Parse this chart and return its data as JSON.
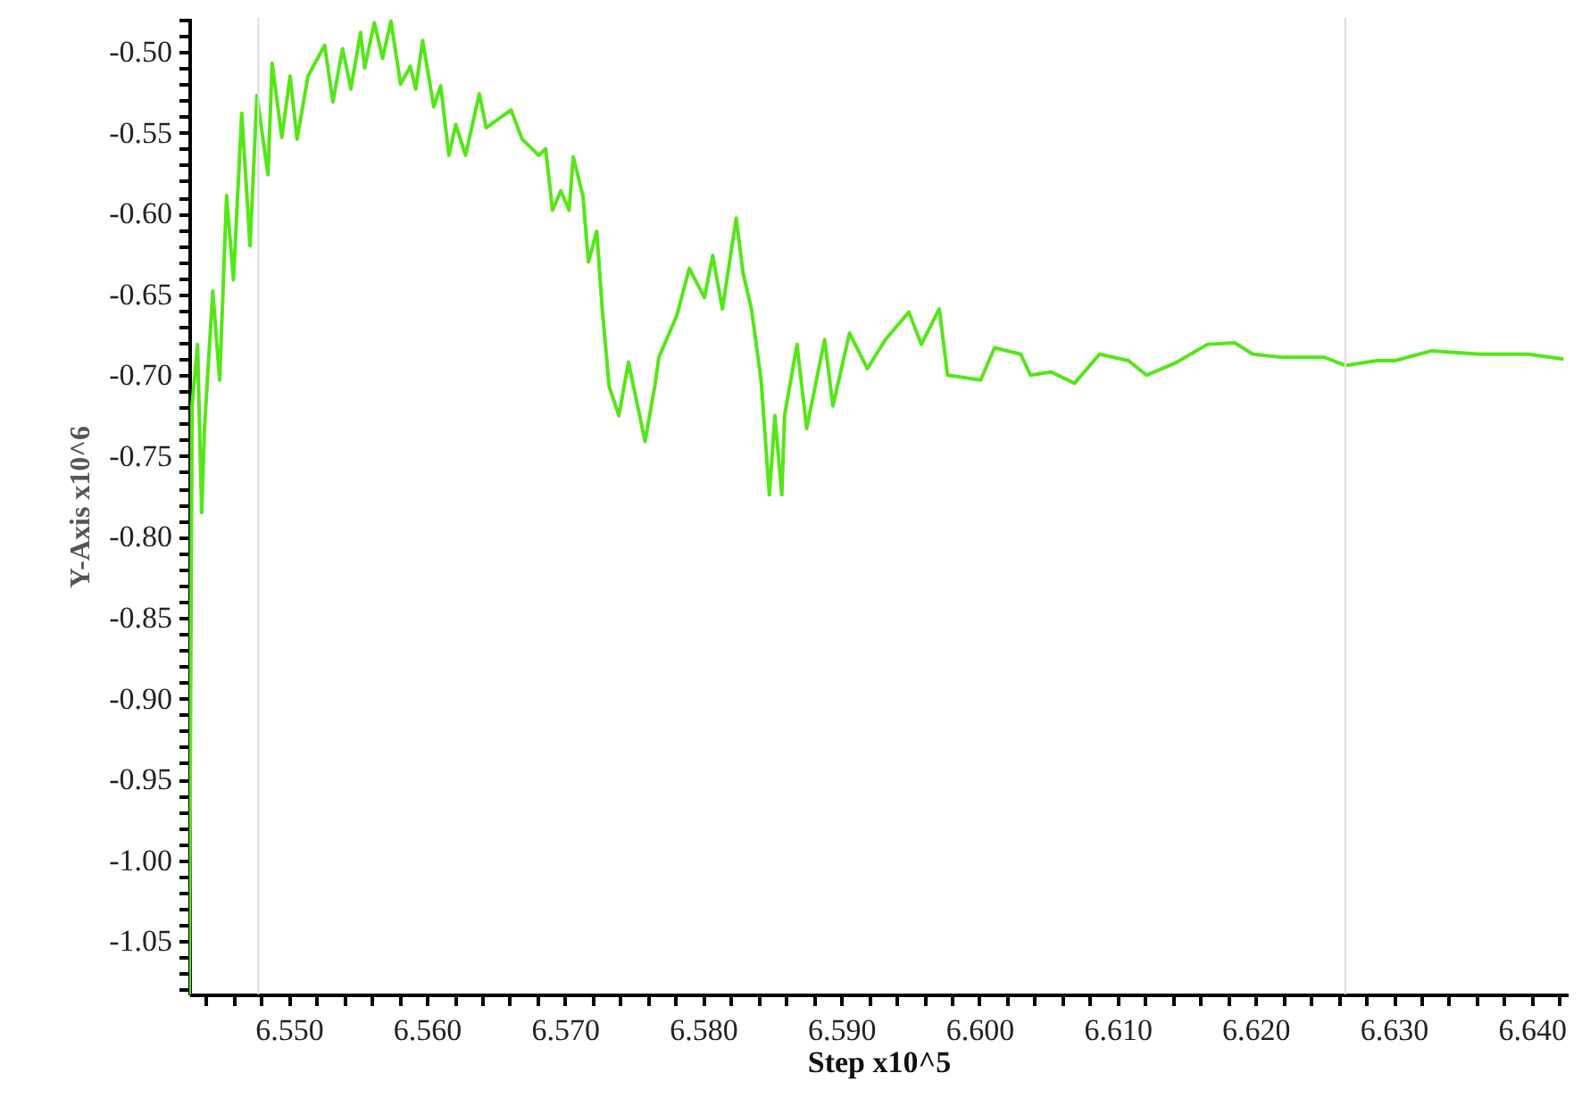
{
  "chart_data": {
    "type": "line",
    "xlabel": "Step x10^5",
    "ylabel": "Y-Axis x10^6",
    "x": [
      6.5428,
      6.543,
      6.5434,
      6.5437,
      6.5439,
      6.5445,
      6.545,
      6.5455,
      6.546,
      6.5466,
      6.5472,
      6.5477,
      6.5485,
      6.5488,
      6.5495,
      6.5501,
      6.5506,
      6.5514,
      6.5526,
      6.5532,
      6.5539,
      6.5545,
      6.5552,
      6.5555,
      6.5562,
      6.5568,
      6.5574,
      6.5581,
      6.5588,
      6.5592,
      6.5597,
      6.5605,
      6.561,
      6.5616,
      6.5621,
      6.5628,
      6.5638,
      6.5643,
      6.5661,
      6.5669,
      6.5681,
      6.5686,
      6.5691,
      6.5697,
      6.5703,
      6.5706,
      6.5713,
      6.5717,
      6.5723,
      6.5727,
      6.5732,
      6.5739,
      6.5746,
      6.5758,
      6.5765,
      6.5768,
      6.5781,
      6.579,
      6.5801,
      6.5807,
      6.5814,
      6.5824,
      6.5829,
      6.5835,
      6.5842,
      6.5848,
      6.5852,
      6.5857,
      6.5859,
      6.5868,
      6.5875,
      6.5888,
      6.5894,
      6.5906,
      6.5919,
      6.5932,
      6.5949,
      6.5958,
      6.5971,
      6.5977,
      6.6001,
      6.6011,
      6.603,
      6.6037,
      6.6052,
      6.6069,
      6.6087,
      6.6108,
      6.6121,
      6.6143,
      6.6165,
      6.6185,
      6.6198,
      6.622,
      6.625,
      6.6265,
      6.6288,
      6.6301,
      6.6327,
      6.6362,
      6.6397,
      6.6423
    ],
    "series": [
      {
        "color": "#55e619",
        "values": [
          -1.083,
          -0.719,
          -0.681,
          -0.785,
          -0.733,
          -0.648,
          -0.703,
          -0.589,
          -0.641,
          -0.538,
          -0.62,
          -0.527,
          -0.576,
          -0.507,
          -0.553,
          -0.515,
          -0.554,
          -0.515,
          -0.496,
          -0.531,
          -0.498,
          -0.523,
          -0.488,
          -0.51,
          -0.482,
          -0.504,
          -0.481,
          -0.52,
          -0.509,
          -0.523,
          -0.493,
          -0.534,
          -0.521,
          -0.564,
          -0.545,
          -0.564,
          -0.526,
          -0.547,
          -0.536,
          -0.554,
          -0.564,
          -0.56,
          -0.598,
          -0.586,
          -0.598,
          -0.565,
          -0.589,
          -0.63,
          -0.611,
          -0.659,
          -0.707,
          -0.725,
          -0.692,
          -0.741,
          -0.707,
          -0.689,
          -0.663,
          -0.634,
          -0.652,
          -0.626,
          -0.659,
          -0.603,
          -0.637,
          -0.659,
          -0.703,
          -0.774,
          -0.725,
          -0.774,
          -0.725,
          -0.681,
          -0.733,
          -0.678,
          -0.719,
          -0.674,
          -0.696,
          -0.678,
          -0.661,
          -0.681,
          -0.659,
          -0.7,
          -0.703,
          -0.683,
          -0.687,
          -0.7,
          -0.698,
          -0.705,
          -0.687,
          -0.691,
          -0.7,
          -0.692,
          -0.681,
          -0.68,
          -0.687,
          -0.689,
          -0.689,
          -0.694,
          -0.691,
          -0.691,
          -0.685,
          -0.687,
          -0.687,
          -0.69
        ]
      }
    ],
    "xlim": [
      6.5428,
      6.6426
    ],
    "ylim": [
      -1.083,
      -0.479
    ],
    "xticks": [
      {
        "value": 6.544,
        "label": null
      },
      {
        "value": 6.546,
        "label": null
      },
      {
        "value": 6.548,
        "label": null
      },
      {
        "value": 6.55,
        "label": "6.550"
      },
      {
        "value": 6.552,
        "label": null
      },
      {
        "value": 6.554,
        "label": null
      },
      {
        "value": 6.556,
        "label": null
      },
      {
        "value": 6.558,
        "label": null
      },
      {
        "value": 6.56,
        "label": "6.560"
      },
      {
        "value": 6.562,
        "label": null
      },
      {
        "value": 6.564,
        "label": null
      },
      {
        "value": 6.566,
        "label": null
      },
      {
        "value": 6.568,
        "label": null
      },
      {
        "value": 6.57,
        "label": "6.570"
      },
      {
        "value": 6.572,
        "label": null
      },
      {
        "value": 6.574,
        "label": null
      },
      {
        "value": 6.576,
        "label": null
      },
      {
        "value": 6.578,
        "label": null
      },
      {
        "value": 6.58,
        "label": "6.580"
      },
      {
        "value": 6.582,
        "label": null
      },
      {
        "value": 6.584,
        "label": null
      },
      {
        "value": 6.586,
        "label": null
      },
      {
        "value": 6.588,
        "label": null
      },
      {
        "value": 6.59,
        "label": "6.590"
      },
      {
        "value": 6.592,
        "label": null
      },
      {
        "value": 6.594,
        "label": null
      },
      {
        "value": 6.596,
        "label": null
      },
      {
        "value": 6.598,
        "label": null
      },
      {
        "value": 6.6,
        "label": "6.600"
      },
      {
        "value": 6.602,
        "label": null
      },
      {
        "value": 6.604,
        "label": null
      },
      {
        "value": 6.606,
        "label": null
      },
      {
        "value": 6.608,
        "label": null
      },
      {
        "value": 6.61,
        "label": "6.610"
      },
      {
        "value": 6.612,
        "label": null
      },
      {
        "value": 6.614,
        "label": null
      },
      {
        "value": 6.616,
        "label": null
      },
      {
        "value": 6.618,
        "label": null
      },
      {
        "value": 6.62,
        "label": "6.620"
      },
      {
        "value": 6.622,
        "label": null
      },
      {
        "value": 6.624,
        "label": null
      },
      {
        "value": 6.626,
        "label": null
      },
      {
        "value": 6.628,
        "label": null
      },
      {
        "value": 6.63,
        "label": "6.630"
      },
      {
        "value": 6.632,
        "label": null
      },
      {
        "value": 6.634,
        "label": null
      },
      {
        "value": 6.636,
        "label": null
      },
      {
        "value": 6.638,
        "label": null
      },
      {
        "value": 6.64,
        "label": "6.640"
      },
      {
        "value": 6.642,
        "label": null
      }
    ],
    "yticks": [
      {
        "value": -1.08,
        "label": null
      },
      {
        "value": -1.07,
        "label": null
      },
      {
        "value": -1.06,
        "label": null
      },
      {
        "value": -1.05,
        "label": "-1.05"
      },
      {
        "value": -1.04,
        "label": null
      },
      {
        "value": -1.03,
        "label": null
      },
      {
        "value": -1.02,
        "label": null
      },
      {
        "value": -1.01,
        "label": null
      },
      {
        "value": -1.0,
        "label": "-1.00"
      },
      {
        "value": -0.99,
        "label": null
      },
      {
        "value": -0.98,
        "label": null
      },
      {
        "value": -0.97,
        "label": null
      },
      {
        "value": -0.96,
        "label": null
      },
      {
        "value": -0.95,
        "label": "-0.95"
      },
      {
        "value": -0.94,
        "label": null
      },
      {
        "value": -0.93,
        "label": null
      },
      {
        "value": -0.92,
        "label": null
      },
      {
        "value": -0.91,
        "label": null
      },
      {
        "value": -0.9,
        "label": "-0.90"
      },
      {
        "value": -0.89,
        "label": null
      },
      {
        "value": -0.88,
        "label": null
      },
      {
        "value": -0.87,
        "label": null
      },
      {
        "value": -0.86,
        "label": null
      },
      {
        "value": -0.85,
        "label": "-0.85"
      },
      {
        "value": -0.84,
        "label": null
      },
      {
        "value": -0.83,
        "label": null
      },
      {
        "value": -0.82,
        "label": null
      },
      {
        "value": -0.81,
        "label": null
      },
      {
        "value": -0.8,
        "label": "-0.80"
      },
      {
        "value": -0.79,
        "label": null
      },
      {
        "value": -0.78,
        "label": null
      },
      {
        "value": -0.77,
        "label": null
      },
      {
        "value": -0.76,
        "label": null
      },
      {
        "value": -0.75,
        "label": "-0.75"
      },
      {
        "value": -0.74,
        "label": null
      },
      {
        "value": -0.73,
        "label": null
      },
      {
        "value": -0.72,
        "label": null
      },
      {
        "value": -0.71,
        "label": null
      },
      {
        "value": -0.7,
        "label": "-0.70"
      },
      {
        "value": -0.69,
        "label": null
      },
      {
        "value": -0.68,
        "label": null
      },
      {
        "value": -0.67,
        "label": null
      },
      {
        "value": -0.66,
        "label": null
      },
      {
        "value": -0.65,
        "label": "-0.65"
      },
      {
        "value": -0.64,
        "label": null
      },
      {
        "value": -0.63,
        "label": null
      },
      {
        "value": -0.62,
        "label": null
      },
      {
        "value": -0.61,
        "label": null
      },
      {
        "value": -0.6,
        "label": "-0.60"
      },
      {
        "value": -0.59,
        "label": null
      },
      {
        "value": -0.58,
        "label": null
      },
      {
        "value": -0.57,
        "label": null
      },
      {
        "value": -0.56,
        "label": null
      },
      {
        "value": -0.55,
        "label": "-0.55"
      },
      {
        "value": -0.54,
        "label": null
      },
      {
        "value": -0.53,
        "label": null
      },
      {
        "value": -0.52,
        "label": null
      },
      {
        "value": -0.51,
        "label": null
      },
      {
        "value": -0.5,
        "label": "-0.50"
      },
      {
        "value": -0.49,
        "label": null
      },
      {
        "value": -0.48,
        "label": null
      }
    ],
    "ref_lines": [
      {
        "axis": "x",
        "value": 6.5478,
        "color": "#dcdcdc"
      },
      {
        "axis": "x",
        "value": 6.6265,
        "color": "#dcdcdc"
      }
    ],
    "line_style": "solid",
    "marker": "none",
    "grid": false
  }
}
